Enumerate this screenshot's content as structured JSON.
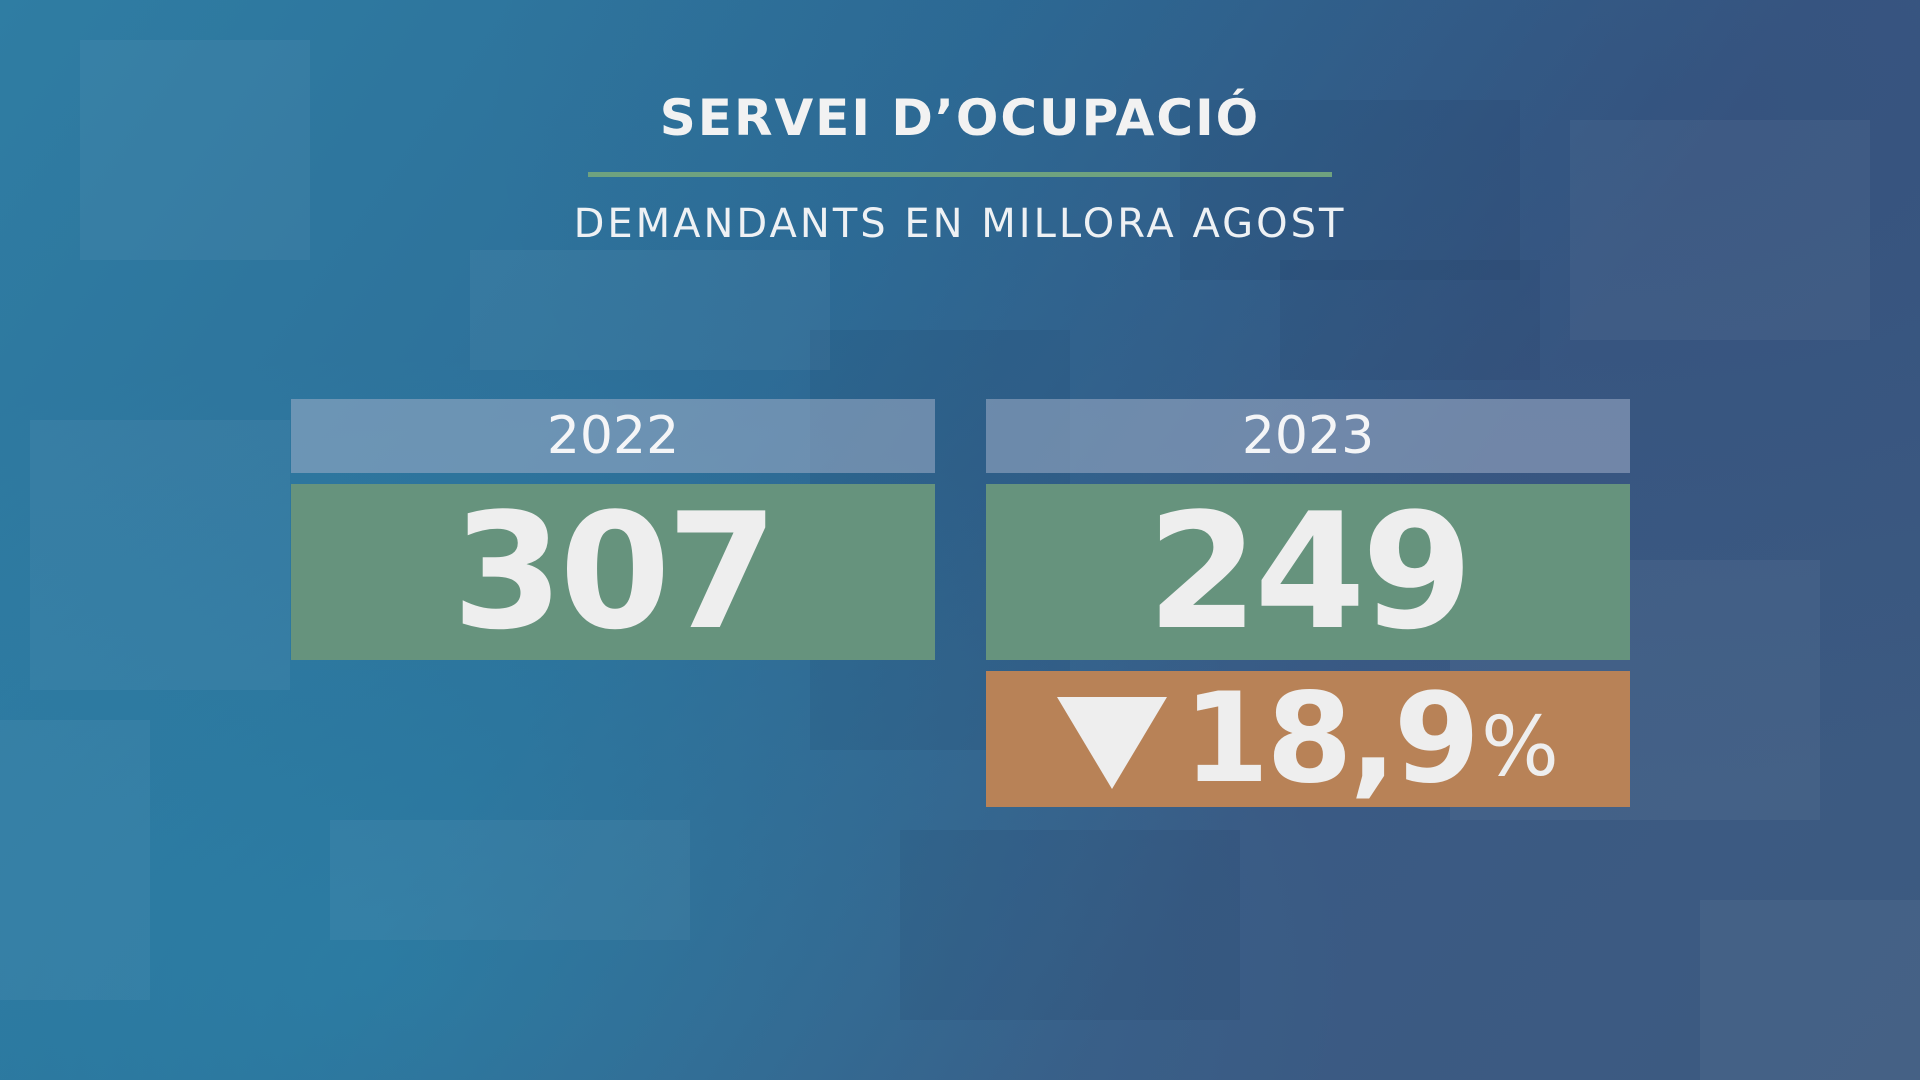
{
  "header": {
    "title": "SERVEI D’OCUPACIÓ",
    "subtitle": "DEMANDANTS EN MILLORA AGOST"
  },
  "comparison": [
    {
      "year": "2022",
      "value": "307"
    },
    {
      "year": "2023",
      "value": "249"
    }
  ],
  "change": {
    "direction": "down",
    "icon": "down-triangle-icon",
    "value": "18,9",
    "unit": "%"
  },
  "colors": {
    "value_box": "#66937d",
    "change_box": "#b88257",
    "rule": "#6fa27f",
    "year_box": "#8c9ab4"
  }
}
